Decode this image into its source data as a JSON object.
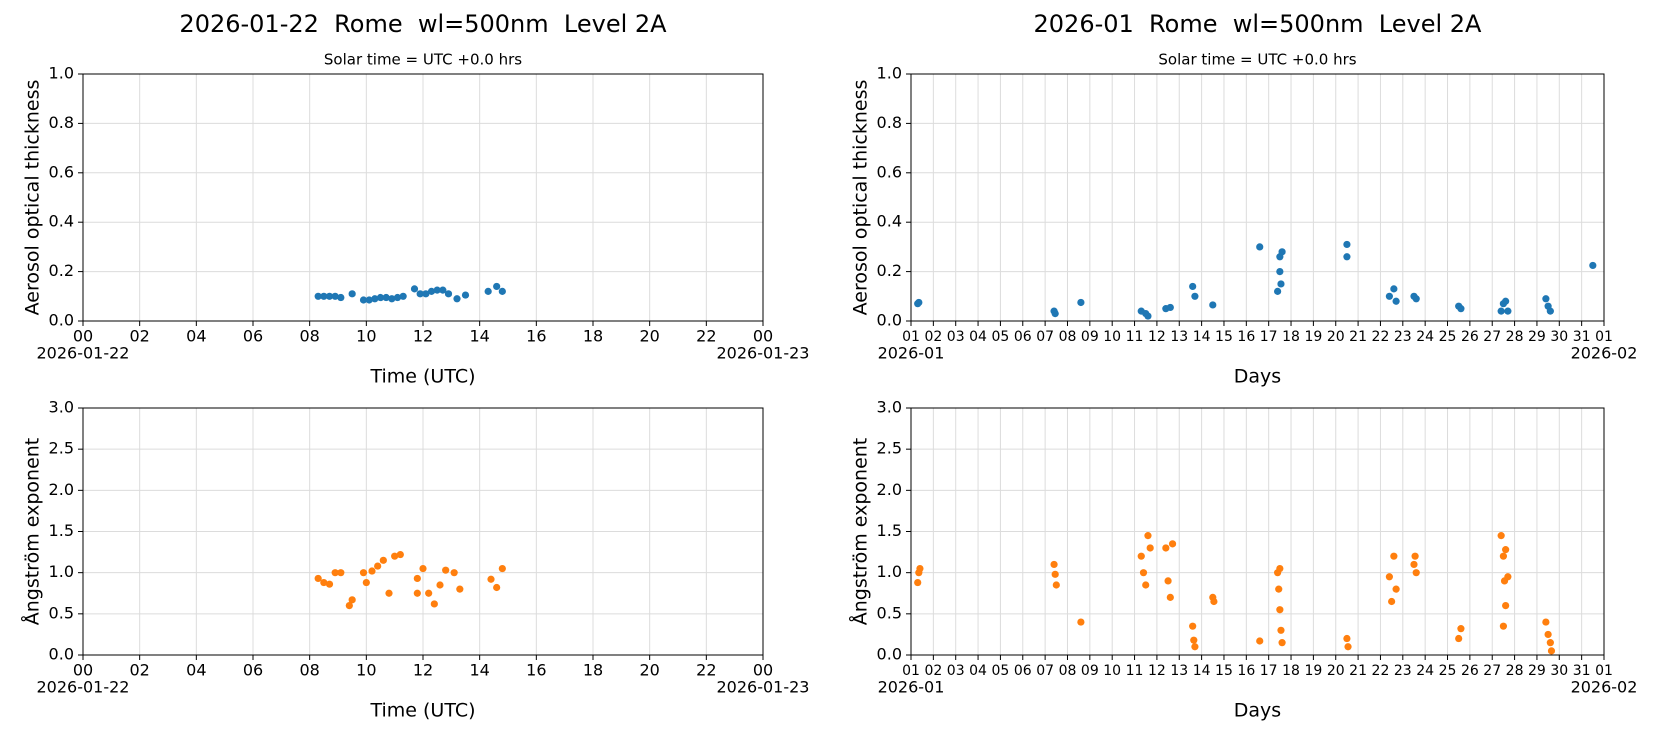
{
  "chart_data": [
    {
      "type": "scatter",
      "title": "2026-01-22  Rome  wl=500nm  Level 2A",
      "subtitle": "Solar time = UTC +0.0 hrs",
      "xlabel": "Time (UTC)",
      "ylabel": "Aerosol optical thickness",
      "color": "#1f77b4",
      "grid": true,
      "x": [
        8.3,
        8.5,
        8.7,
        8.9,
        9.1,
        9.5,
        9.9,
        10.1,
        10.3,
        10.5,
        10.7,
        10.9,
        11.1,
        11.3,
        11.7,
        11.9,
        12.1,
        12.3,
        12.5,
        12.7,
        12.9,
        13.2,
        13.5,
        14.3,
        14.6,
        14.8
      ],
      "values": [
        0.1,
        0.1,
        0.1,
        0.1,
        0.095,
        0.11,
        0.085,
        0.085,
        0.09,
        0.095,
        0.095,
        0.09,
        0.095,
        0.1,
        0.13,
        0.11,
        0.11,
        0.12,
        0.125,
        0.125,
        0.11,
        0.09,
        0.105,
        0.12,
        0.14,
        0.12
      ],
      "xlim": [
        0,
        24
      ],
      "ylim": [
        0,
        1
      ],
      "xticks": [
        {
          "value": 0,
          "label": "00"
        },
        {
          "value": 2,
          "label": "02"
        },
        {
          "value": 4,
          "label": "04"
        },
        {
          "value": 6,
          "label": "06"
        },
        {
          "value": 8,
          "label": "08"
        },
        10,
        12,
        14,
        16,
        18,
        20,
        22,
        {
          "value": 24,
          "label": "00"
        }
      ],
      "xtick_sublabels": [
        {
          "value": 0,
          "label": "2026-01-22"
        },
        {
          "value": 24,
          "label": "2026-01-23"
        }
      ],
      "yticks": [
        {
          "value": 0,
          "label": "0.0"
        },
        0.2,
        0.4,
        0.6,
        0.8,
        {
          "value": 1,
          "label": "1.0"
        }
      ]
    },
    {
      "type": "scatter",
      "title": "2026-01  Rome  wl=500nm  Level 2A",
      "subtitle": "Solar time = UTC +0.0 hrs",
      "xlabel": "Days",
      "ylabel": "Aerosol optical thickness",
      "color": "#1f77b4",
      "grid": true,
      "x": [
        1.3,
        1.35,
        7.4,
        7.45,
        8.6,
        11.3,
        11.5,
        11.6,
        12.4,
        12.6,
        13.6,
        13.7,
        14.5,
        16.6,
        17.4,
        17.5,
        17.5,
        17.6,
        17.55,
        20.5,
        20.5,
        22.4,
        22.6,
        22.7,
        23.5,
        23.6,
        25.5,
        25.6,
        27.4,
        27.5,
        27.6,
        27.7,
        29.4,
        29.5,
        29.6,
        31.5
      ],
      "values": [
        0.07,
        0.075,
        0.04,
        0.03,
        0.075,
        0.04,
        0.03,
        0.02,
        0.05,
        0.055,
        0.14,
        0.1,
        0.065,
        0.3,
        0.12,
        0.2,
        0.26,
        0.28,
        0.15,
        0.31,
        0.26,
        0.1,
        0.13,
        0.08,
        0.1,
        0.09,
        0.06,
        0.05,
        0.04,
        0.07,
        0.08,
        0.04,
        0.09,
        0.06,
        0.04,
        0.225
      ],
      "xlim": [
        1,
        32
      ],
      "ylim": [
        0,
        1
      ],
      "xticks": [
        {
          "value": 1,
          "label": "01"
        },
        {
          "value": 2,
          "label": "02"
        },
        {
          "value": 3,
          "label": "03"
        },
        {
          "value": 4,
          "label": "04"
        },
        {
          "value": 5,
          "label": "05"
        },
        {
          "value": 6,
          "label": "06"
        },
        {
          "value": 7,
          "label": "07"
        },
        {
          "value": 8,
          "label": "08"
        },
        {
          "value": 9,
          "label": "09"
        },
        10,
        11,
        12,
        13,
        14,
        15,
        16,
        17,
        18,
        19,
        20,
        21,
        22,
        23,
        24,
        25,
        26,
        27,
        28,
        29,
        30,
        31,
        {
          "value": 32,
          "label": "01"
        }
      ],
      "xtick_sublabels": [
        {
          "value": 1,
          "label": "2026-01"
        },
        {
          "value": 32,
          "label": "2026-02"
        }
      ],
      "yticks": [
        {
          "value": 0,
          "label": "0.0"
        },
        0.2,
        0.4,
        0.6,
        0.8,
        {
          "value": 1,
          "label": "1.0"
        }
      ]
    },
    {
      "type": "scatter",
      "xlabel": "Time (UTC)",
      "ylabel": "Ångström exponent",
      "color": "#ff7f0e",
      "grid": true,
      "x": [
        8.3,
        8.5,
        8.7,
        8.9,
        9.1,
        9.4,
        9.5,
        9.9,
        10.0,
        10.2,
        10.4,
        10.6,
        10.8,
        11.0,
        11.2,
        11.8,
        11.8,
        12.0,
        12.2,
        12.4,
        12.6,
        12.8,
        13.1,
        13.3,
        14.4,
        14.6,
        14.8
      ],
      "values": [
        0.93,
        0.88,
        0.86,
        1.0,
        1.0,
        0.6,
        0.67,
        1.0,
        0.88,
        1.02,
        1.08,
        1.15,
        0.75,
        1.2,
        1.22,
        0.75,
        0.93,
        1.05,
        0.75,
        0.62,
        0.85,
        1.03,
        1.0,
        0.8,
        0.92,
        0.82,
        1.05
      ],
      "xlim": [
        0,
        24
      ],
      "ylim": [
        0,
        3
      ],
      "xticks": [
        {
          "value": 0,
          "label": "00"
        },
        {
          "value": 2,
          "label": "02"
        },
        {
          "value": 4,
          "label": "04"
        },
        {
          "value": 6,
          "label": "06"
        },
        {
          "value": 8,
          "label": "08"
        },
        10,
        12,
        14,
        16,
        18,
        20,
        22,
        {
          "value": 24,
          "label": "00"
        }
      ],
      "xtick_sublabels": [
        {
          "value": 0,
          "label": "2026-01-22"
        },
        {
          "value": 24,
          "label": "2026-01-23"
        }
      ],
      "yticks": [
        {
          "value": 0,
          "label": "0.0"
        },
        0.5,
        {
          "value": 1,
          "label": "1.0"
        },
        1.5,
        {
          "value": 2,
          "label": "2.0"
        },
        2.5,
        {
          "value": 3,
          "label": "3.0"
        }
      ]
    },
    {
      "type": "scatter",
      "xlabel": "Days",
      "ylabel": "Ångström exponent",
      "color": "#ff7f0e",
      "grid": true,
      "x": [
        1.3,
        1.35,
        1.4,
        7.4,
        7.45,
        7.5,
        8.6,
        11.3,
        11.4,
        11.5,
        11.6,
        11.7,
        12.4,
        12.5,
        12.6,
        12.7,
        13.6,
        13.65,
        13.7,
        14.5,
        14.55,
        16.6,
        17.4,
        17.45,
        17.5,
        17.55,
        17.6,
        17.5,
        20.5,
        20.55,
        22.4,
        22.5,
        22.6,
        22.7,
        23.5,
        23.6,
        23.55,
        25.5,
        25.6,
        27.4,
        27.5,
        27.55,
        27.6,
        27.5,
        27.7,
        27.6,
        29.4,
        29.5,
        29.6,
        29.65
      ],
      "values": [
        0.88,
        1.0,
        1.05,
        1.1,
        0.98,
        0.85,
        0.4,
        1.2,
        1.0,
        0.85,
        1.45,
        1.3,
        1.3,
        0.9,
        0.7,
        1.35,
        0.35,
        0.18,
        0.1,
        0.7,
        0.65,
        0.17,
        1.0,
        0.8,
        0.55,
        0.3,
        0.15,
        1.05,
        0.2,
        0.1,
        0.95,
        0.65,
        1.2,
        0.8,
        1.1,
        1.0,
        1.2,
        0.2,
        0.32,
        1.45,
        1.2,
        0.9,
        0.6,
        0.35,
        0.95,
        1.28,
        0.4,
        0.25,
        0.15,
        0.05
      ],
      "xlim": [
        1,
        32
      ],
      "ylim": [
        0,
        3
      ],
      "xticks": [
        {
          "value": 1,
          "label": "01"
        },
        {
          "value": 2,
          "label": "02"
        },
        {
          "value": 3,
          "label": "03"
        },
        {
          "value": 4,
          "label": "04"
        },
        {
          "value": 5,
          "label": "05"
        },
        {
          "value": 6,
          "label": "06"
        },
        {
          "value": 7,
          "label": "07"
        },
        {
          "value": 8,
          "label": "08"
        },
        {
          "value": 9,
          "label": "09"
        },
        10,
        11,
        12,
        13,
        14,
        15,
        16,
        17,
        18,
        19,
        20,
        21,
        22,
        23,
        24,
        25,
        26,
        27,
        28,
        29,
        30,
        31,
        {
          "value": 32,
          "label": "01"
        }
      ],
      "xtick_sublabels": [
        {
          "value": 1,
          "label": "2026-01"
        },
        {
          "value": 32,
          "label": "2026-02"
        }
      ],
      "yticks": [
        {
          "value": 0,
          "label": "0.0"
        },
        0.5,
        {
          "value": 1,
          "label": "1.0"
        },
        1.5,
        {
          "value": 2,
          "label": "2.0"
        },
        2.5,
        {
          "value": 3,
          "label": "3.0"
        }
      ]
    }
  ]
}
